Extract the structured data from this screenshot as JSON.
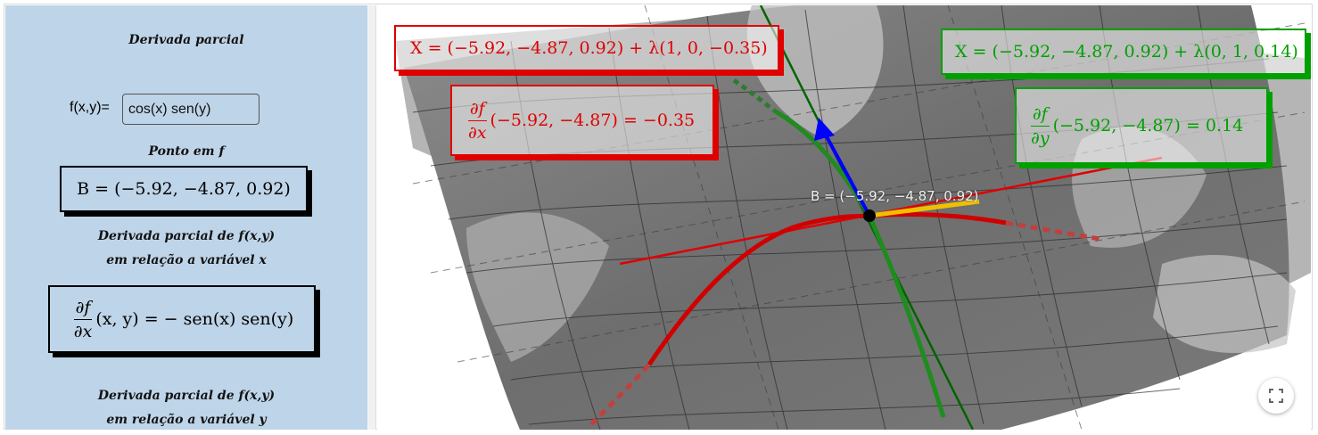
{
  "sidebar": {
    "title": "Derivada parcial",
    "function_label": "f(x,y)=",
    "function_value": "cos(x) sen(y)",
    "point_heading": "Ponto em f",
    "point_formula": "B =  (−5.92, −4.87, 0.92)",
    "dfx_heading_line1": "Derivada parcial de f(x,y)",
    "dfx_heading_line2": "em relação a variável x",
    "dfx_formula_numerator": "∂f",
    "dfx_formula_denominator": "∂x",
    "dfx_formula_rest": "(x, y) = − sen(x)  sen(y)",
    "dfy_heading_line1": "Derivada parcial de f(x,y)",
    "dfy_heading_line2": "em relação a variável y"
  },
  "viewport": {
    "line_x": "X = (−5.92, −4.87, 0.92) + λ(1, 0, −0.35)",
    "dfx_numerator": "∂f",
    "dfx_denominator": "∂x",
    "dfx_value": "(−5.92, −4.87) = −0.35",
    "line_y": "X = (−5.92, −4.87, 0.92) + λ(0, 1, 0.14)",
    "dfy_numerator": "∂f",
    "dfy_denominator": "∂y",
    "dfy_value": "(−5.92, −4.87) =  0.14",
    "point_label": "B = (−5.92, −4.87, 0.92)",
    "fullscreen_icon": "fullscreen-icon"
  },
  "colors": {
    "sidebar_bg": "#bed4e8",
    "red": "#e00000",
    "green": "#00a000",
    "tangent_blue": "#0000ff",
    "tangent_yellow": "#f0c000"
  }
}
